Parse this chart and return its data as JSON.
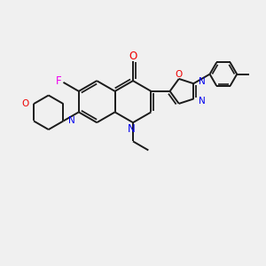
{
  "bg_color": "#f0f0f0",
  "bond_color": "#1a1a1a",
  "n_color": "#0000ee",
  "o_color": "#ee0000",
  "f_color": "#ee00ee",
  "figsize": [
    3.0,
    3.0
  ],
  "dpi": 100,
  "xlim": [
    0,
    10
  ],
  "ylim": [
    0,
    10
  ]
}
